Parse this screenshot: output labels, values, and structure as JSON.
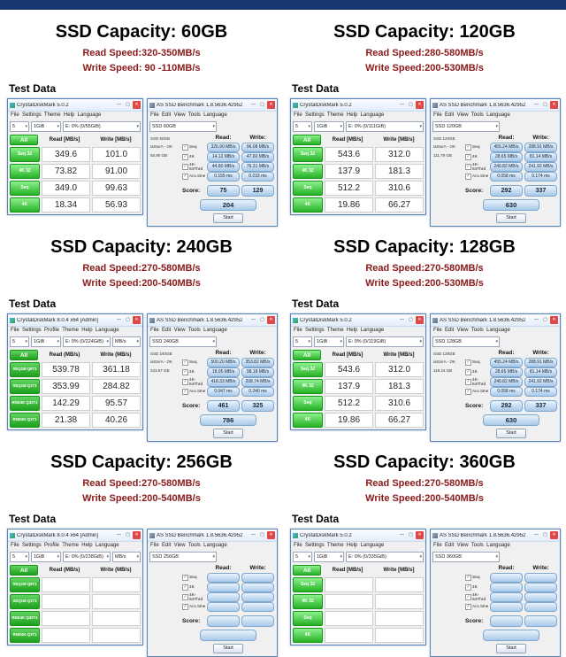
{
  "accent": {
    "top_bar_color": "#17366d",
    "speed_text_color": "#8a1a1a"
  },
  "sections": [
    {
      "title": "SSD Capacity: 60GB",
      "read_speed": "Read Speed:320-350MB/s",
      "write_speed": "Write Speed: 90 -110MB/s",
      "test_data_label": "Test Data",
      "cdm": {
        "variant": "v5",
        "title": "CrystalDiskMark 5.0.2",
        "menu": "File  Settings  Theme  Help  Language",
        "combos": [
          "5",
          "1GiB",
          "E: 0% (0/55GiB)",
          ""
        ],
        "all_label": "All",
        "read_header": "Read [MB/s]",
        "write_header": "Write [MB/s]",
        "rows": [
          {
            "label": "Seq 32",
            "read": "349.6",
            "write": "101.0"
          },
          {
            "label": "4K 32",
            "read": "73.82",
            "write": "91.00"
          },
          {
            "label": "Seq",
            "read": "349.0",
            "write": "99.63"
          },
          {
            "label": "4K",
            "read": "18.34",
            "write": "56.93"
          }
        ]
      },
      "asd": {
        "title": "AS SSD Benchmark 1.8.5636.42952",
        "menu": "File  Edit  View  Tools  Language",
        "drive": "SSD 60GB",
        "info": [
          "SSD 60GB",
          "iaStorA - OK",
          "55.90 GB"
        ],
        "read_label": "Read:",
        "write_label": "Write:",
        "rows": [
          {
            "label": "Seq",
            "read": "326.90 MB/s",
            "write": "96.08 MB/s"
          },
          {
            "label": "4K",
            "read": "14.12 MB/s",
            "write": "47.60 MB/s"
          },
          {
            "label": "4K-64Thrd",
            "read": "44.80 MB/s",
            "write": "76.31 MB/s"
          },
          {
            "label": "Acc.time",
            "read": "0.155 ms",
            "write": "0.233 ms"
          }
        ],
        "score_label": "Score:",
        "score_read": "75",
        "score_write": "129",
        "score_total": "204",
        "start_label": "Start"
      }
    },
    {
      "title": "SSD Capacity: 120GB",
      "read_speed": "Read Speed:280-580MB/s",
      "write_speed": "Write Speed:200-530MB/s",
      "test_data_label": "Test Data",
      "cdm": {
        "variant": "v5",
        "title": "CrystalDiskMark 5.0.2",
        "menu": "File  Settings  Theme  Help  Language",
        "combos": [
          "5",
          "1GiB",
          "E: 0% (0/111GiB)",
          ""
        ],
        "all_label": "All",
        "read_header": "Read [MB/s]",
        "write_header": "Write [MB/s]",
        "rows": [
          {
            "label": "Seq 32",
            "read": "543.6",
            "write": "312.0"
          },
          {
            "label": "4K 32",
            "read": "137.9",
            "write": "181.3"
          },
          {
            "label": "Seq",
            "read": "512.2",
            "write": "310.6"
          },
          {
            "label": "4K",
            "read": "19.86",
            "write": "66.27"
          }
        ]
      },
      "asd": {
        "title": "AS SSD Benchmark 1.8.5636.42952",
        "menu": "File  Edit  View  Tools  Language",
        "drive": "SSD 120GB",
        "info": [
          "SSD 120GB",
          "iaStorA - OK",
          "111.79 GB"
        ],
        "read_label": "Read:",
        "write_label": "Write:",
        "rows": [
          {
            "label": "Seq",
            "read": "455.24 MB/s",
            "write": "288.91 MB/s"
          },
          {
            "label": "4K",
            "read": "28.65 MB/s",
            "write": "81.14 MB/s"
          },
          {
            "label": "4K-64Thrd",
            "read": "240.82 MB/s",
            "write": "241.92 MB/s"
          },
          {
            "label": "Acc.time",
            "read": "0.058 ms",
            "write": "0.174 ms"
          }
        ],
        "score_label": "Score:",
        "score_read": "292",
        "score_write": "337",
        "score_total": "630",
        "start_label": "Start"
      }
    },
    {
      "title": "SSD Capacity: 240GB",
      "read_speed": "Read Speed:270-580MB/s",
      "write_speed": "Write Speed:200-540MB/s",
      "test_data_label": "Test Data",
      "cdm": {
        "variant": "v8",
        "title": "CrystalDiskMark 8.0.4 x64 [Admin]",
        "menu": "File  Settings  Profile  Theme  Help  Language",
        "combos": [
          "5",
          "1GiB",
          "E: 0% (0/224GiB)",
          "MB/s"
        ],
        "all_label": "All",
        "read_header": "Read (MB/s)",
        "write_header": "Write (MB/s)",
        "rows": [
          {
            "label": "SEQ1M Q8T1",
            "read": "539.78",
            "write": "361.18"
          },
          {
            "label": "SEQ1M Q1T1",
            "read": "353.99",
            "write": "284.82"
          },
          {
            "label": "RND4K Q32T1",
            "read": "142.29",
            "write": "95.57"
          },
          {
            "label": "RND4K Q1T1",
            "read": "21.38",
            "write": "40.26"
          }
        ]
      },
      "asd": {
        "title": "AS SSD Benchmark 1.8.5636.42952",
        "menu": "File  Edit  View  Tools  Language",
        "drive": "SSD 240GB",
        "info": [
          "SSD 240GB",
          "iaStorA - OK",
          "223.57 GB"
        ],
        "read_label": "Read:",
        "write_label": "Write:",
        "rows": [
          {
            "label": "Seq",
            "read": "500.20 MB/s",
            "write": "353.82 MB/s"
          },
          {
            "label": "4K",
            "read": "18.05 MB/s",
            "write": "98.18 MB/s"
          },
          {
            "label": "4K-64Thrd",
            "read": "418.33 MB/s",
            "write": "208.74 MB/s"
          },
          {
            "label": "Acc.time",
            "read": "0.047 ms",
            "write": "0.240 ms"
          }
        ],
        "score_label": "Score:",
        "score_read": "461",
        "score_write": "325",
        "score_total": "786",
        "start_label": "Start"
      }
    },
    {
      "title": "SSD Capacity: 128GB",
      "read_speed": "Read Speed:270-580MB/s",
      "write_speed": "Write Speed:200-530MB/s",
      "test_data_label": "Test Data",
      "cdm": {
        "variant": "v5",
        "title": "CrystalDiskMark 5.0.2",
        "menu": "File  Settings  Theme  Help  Language",
        "combos": [
          "5",
          "1GiB",
          "E: 0% (0/119GiB)",
          ""
        ],
        "all_label": "All",
        "read_header": "Read [MB/s]",
        "write_header": "Write [MB/s]",
        "rows": [
          {
            "label": "Seq 32",
            "read": "543.6",
            "write": "312.0"
          },
          {
            "label": "4K 32",
            "read": "137.9",
            "write": "181.3"
          },
          {
            "label": "Seq",
            "read": "512.2",
            "write": "310.6"
          },
          {
            "label": "4K",
            "read": "19.86",
            "write": "66.27"
          }
        ]
      },
      "asd": {
        "title": "AS SSD Benchmark 1.8.5636.42952",
        "menu": "File  Edit  View  Tools  Language",
        "drive": "SSD 128GB",
        "info": [
          "SSD 128GB",
          "iaStorA - OK",
          "119.24 GB"
        ],
        "read_label": "Read:",
        "write_label": "Write:",
        "rows": [
          {
            "label": "Seq",
            "read": "455.24 MB/s",
            "write": "288.91 MB/s"
          },
          {
            "label": "4K",
            "read": "28.65 MB/s",
            "write": "81.14 MB/s"
          },
          {
            "label": "4K-64Thrd",
            "read": "240.82 MB/s",
            "write": "241.92 MB/s"
          },
          {
            "label": "Acc.time",
            "read": "0.058 ms",
            "write": "0.174 ms"
          }
        ],
        "score_label": "Score:",
        "score_read": "292",
        "score_write": "337",
        "score_total": "630",
        "start_label": "Start"
      }
    },
    {
      "title": "SSD Capacity: 256GB",
      "read_speed": "Read Speed:270-580MB/s",
      "write_speed": "Write Speed:200-540MB/s",
      "test_data_label": "Test Data",
      "cdm": {
        "variant": "v8",
        "title": "CrystalDiskMark 8.0.4 x64 [Admin]",
        "menu": "File  Settings  Profile  Theme  Help  Language",
        "combos": [
          "5",
          "1GiB",
          "E: 0% (0/238GiB)",
          "MB/s"
        ],
        "all_label": "All",
        "read_header": "Read (MB/s)",
        "write_header": "Write (MB/s)",
        "rows": [
          {
            "label": "SEQ1M Q8T1",
            "read": "",
            "write": ""
          },
          {
            "label": "SEQ1M Q1T1",
            "read": "",
            "write": ""
          },
          {
            "label": "RND4K Q32T1",
            "read": "",
            "write": ""
          },
          {
            "label": "RND4K Q1T1",
            "read": "",
            "write": ""
          }
        ]
      },
      "asd": {
        "title": "AS SSD Benchmark 1.8.5636.42952",
        "menu": "File  Edit  View  Tools  Language",
        "drive": "SSD 256GB",
        "info": [
          "",
          "",
          ""
        ],
        "read_label": "Read:",
        "write_label": "Write:",
        "rows": [
          {
            "label": "Seq",
            "read": "",
            "write": ""
          },
          {
            "label": "4K",
            "read": "",
            "write": ""
          },
          {
            "label": "4K-64Thrd",
            "read": "",
            "write": ""
          },
          {
            "label": "Acc.time",
            "read": "",
            "write": ""
          }
        ],
        "score_label": "Score:",
        "score_read": "",
        "score_write": "",
        "score_total": "",
        "start_label": "Start"
      }
    },
    {
      "title": "SSD Capacity: 360GB",
      "read_speed": "Read Speed:270-580MB/s",
      "write_speed": "Write Speed:200-540MB/s",
      "test_data_label": "Test Data",
      "cdm": {
        "variant": "v5",
        "title": "CrystalDiskMark 5.0.2",
        "menu": "File  Settings  Theme  Help  Language",
        "combos": [
          "5",
          "1GiB",
          "E: 0% (0/335GiB)",
          ""
        ],
        "all_label": "All",
        "read_header": "Read [MB/s]",
        "write_header": "Write [MB/s]",
        "rows": [
          {
            "label": "Seq 32",
            "read": "",
            "write": ""
          },
          {
            "label": "4K 32",
            "read": "",
            "write": ""
          },
          {
            "label": "Seq",
            "read": "",
            "write": ""
          },
          {
            "label": "4K",
            "read": "",
            "write": ""
          }
        ]
      },
      "asd": {
        "title": "AS SSD Benchmark 1.8.5636.42952",
        "menu": "File  Edit  View  Tools  Language",
        "drive": "SSD 360GB",
        "info": [
          "",
          "",
          ""
        ],
        "read_label": "Read:",
        "write_label": "Write:",
        "rows": [
          {
            "label": "Seq",
            "read": "",
            "write": ""
          },
          {
            "label": "4K",
            "read": "",
            "write": ""
          },
          {
            "label": "4K-64Thrd",
            "read": "",
            "write": ""
          },
          {
            "label": "Acc.time",
            "read": "",
            "write": ""
          }
        ],
        "score_label": "Score:",
        "score_read": "",
        "score_write": "",
        "score_total": "",
        "start_label": "Start"
      }
    }
  ]
}
